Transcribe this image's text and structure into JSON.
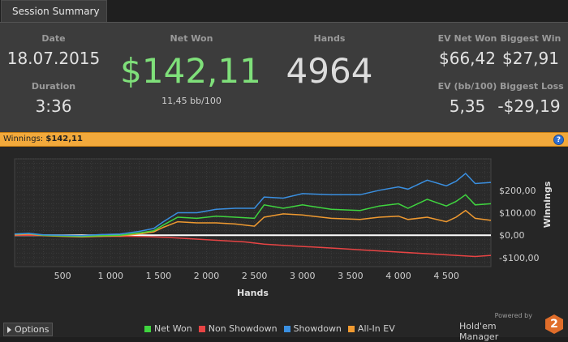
{
  "tab": {
    "label": "Session Summary"
  },
  "summary": {
    "date_label": "Date",
    "date": "18.07.2015",
    "duration_label": "Duration",
    "duration": "3:36",
    "net_won_label": "Net Won",
    "net_won": "$142,11",
    "net_won_sub": "11,45 bb/100",
    "hands_label": "Hands",
    "hands": "4964",
    "ev_net_won_label": "EV Net Won",
    "ev_net_won": "$66,42",
    "biggest_win_label": "Biggest Win",
    "biggest_win": "$27,91",
    "ev_bb_label": "EV (bb/100)",
    "ev_bb": "5,35",
    "biggest_loss_label": "Biggest Loss",
    "biggest_loss": "-$29,19"
  },
  "winnings_bar": {
    "label": "Winnings:",
    "value": "$142,11",
    "help": "?"
  },
  "footer": {
    "options_label": "Options",
    "powered_by": "Powered by",
    "brand_name": "Hold'em Manager",
    "brand_number": "2"
  },
  "chart_data": {
    "type": "line",
    "xlabel": "Hands",
    "ylabel": "Winnings",
    "xlim": [
      0,
      4964
    ],
    "ylim": [
      -140,
      340
    ],
    "x_ticks": [
      500,
      1000,
      1500,
      2000,
      2500,
      3000,
      3500,
      4000,
      4500
    ],
    "x_tick_labels": [
      "500",
      "1 000",
      "1 500",
      "2 000",
      "2 500",
      "3 000",
      "3 500",
      "4 000",
      "4 500"
    ],
    "y_ticks": [
      -100,
      0,
      100,
      200
    ],
    "y_tick_labels": [
      "-$100,00",
      "$0,00",
      "$100,00",
      "$200,00"
    ],
    "grid": true,
    "legend_position": "bottom",
    "series": [
      {
        "name": "Net Won",
        "color": "#3fd43f",
        "x": [
          0,
          150,
          300,
          500,
          700,
          900,
          1100,
          1300,
          1450,
          1550,
          1700,
          1900,
          2100,
          2300,
          2500,
          2600,
          2800,
          3000,
          3300,
          3600,
          3800,
          4000,
          4100,
          4300,
          4500,
          4600,
          4700,
          4800,
          4964
        ],
        "y": [
          5,
          8,
          0,
          -3,
          -5,
          -2,
          0,
          10,
          20,
          45,
          80,
          75,
          85,
          80,
          75,
          135,
          120,
          135,
          115,
          110,
          130,
          140,
          120,
          160,
          130,
          150,
          180,
          135,
          140
        ]
      },
      {
        "name": "Non Showdown",
        "color": "#e84444",
        "x": [
          0,
          200,
          400,
          600,
          800,
          1000,
          1200,
          1400,
          1600,
          1800,
          2000,
          2200,
          2400,
          2600,
          2800,
          3000,
          3200,
          3400,
          3600,
          3800,
          4000,
          4200,
          4400,
          4600,
          4800,
          4964
        ],
        "y": [
          0,
          0,
          -2,
          -3,
          -5,
          -5,
          -5,
          -7,
          -10,
          -15,
          -20,
          -25,
          -30,
          -40,
          -45,
          -50,
          -55,
          -60,
          -65,
          -70,
          -75,
          -80,
          -85,
          -90,
          -95,
          -90
        ]
      },
      {
        "name": "Showdown",
        "color": "#3a8fe0",
        "x": [
          0,
          150,
          300,
          500,
          700,
          900,
          1100,
          1300,
          1450,
          1550,
          1700,
          1900,
          2100,
          2300,
          2500,
          2600,
          2800,
          3000,
          3300,
          3600,
          3800,
          4000,
          4100,
          4300,
          4500,
          4600,
          4700,
          4800,
          4964
        ],
        "y": [
          5,
          8,
          2,
          0,
          -2,
          3,
          5,
          17,
          30,
          60,
          100,
          100,
          115,
          120,
          120,
          170,
          165,
          185,
          180,
          180,
          200,
          215,
          205,
          245,
          220,
          240,
          275,
          230,
          235
        ]
      },
      {
        "name": "All-In EV",
        "color": "#f09a30",
        "x": [
          0,
          150,
          300,
          500,
          700,
          900,
          1100,
          1300,
          1450,
          1550,
          1700,
          1900,
          2100,
          2300,
          2500,
          2600,
          2800,
          3000,
          3300,
          3600,
          3800,
          4000,
          4100,
          4300,
          4500,
          4600,
          4700,
          4800,
          4964
        ],
        "y": [
          2,
          5,
          -2,
          -5,
          -8,
          -5,
          -3,
          5,
          15,
          35,
          60,
          55,
          55,
          50,
          40,
          80,
          95,
          90,
          75,
          70,
          80,
          85,
          70,
          80,
          60,
          80,
          110,
          75,
          66
        ]
      }
    ]
  }
}
